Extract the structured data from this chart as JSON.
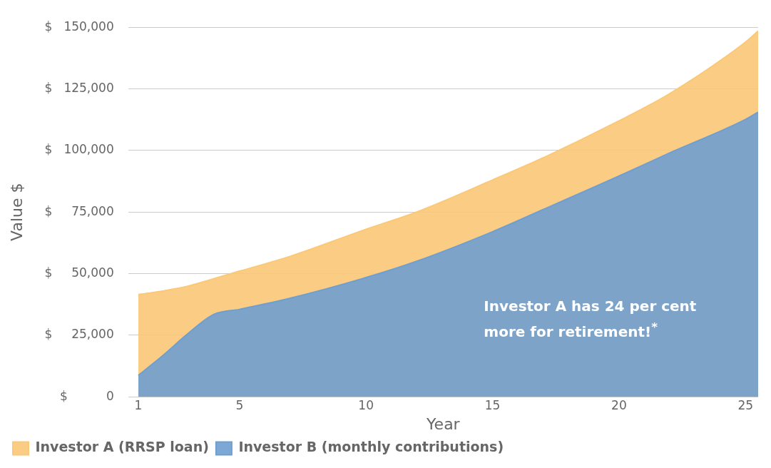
{
  "chart_data": {
    "type": "area",
    "xlabel": "Year",
    "ylabel": "Value $",
    "x": [
      1,
      2,
      3,
      4,
      5,
      7,
      10,
      12,
      15,
      17,
      20,
      22,
      25,
      25.5
    ],
    "series": [
      {
        "name": "Investor A (RRSP loan)",
        "color": "#fbc877",
        "values": [
          41500,
          43000,
          45000,
          48000,
          51000,
          57000,
          68000,
          75000,
          88000,
          97000,
          112000,
          123000,
          144000,
          148500
        ]
      },
      {
        "name": "Investor B (monthly contributions)",
        "color": "#6f9fd0",
        "values": [
          8700,
          17000,
          26000,
          33500,
          35500,
          40000,
          48400,
          55000,
          67000,
          76000,
          89600,
          99000,
          112600,
          115600
        ]
      }
    ],
    "xlim": [
      0.6,
      25.5
    ],
    "xticks": [
      1,
      5,
      10,
      15,
      20,
      25
    ],
    "ylim": [
      0,
      150000
    ],
    "yticks": [
      {
        "value": 0,
        "label": "$          0"
      },
      {
        "value": 25000,
        "label": "$     25,000"
      },
      {
        "value": 50000,
        "label": "$     50,000"
      },
      {
        "value": 75000,
        "label": "$     75,000"
      },
      {
        "value": 100000,
        "label": "$   100,000"
      },
      {
        "value": 125000,
        "label": "$   125,000"
      },
      {
        "value": 150000,
        "label": "$   150,000"
      }
    ],
    "grid": "y",
    "legend": "bottom left",
    "annotations": [
      "Investor A has 24 per cent more for retirement!$^{*}$"
    ]
  }
}
